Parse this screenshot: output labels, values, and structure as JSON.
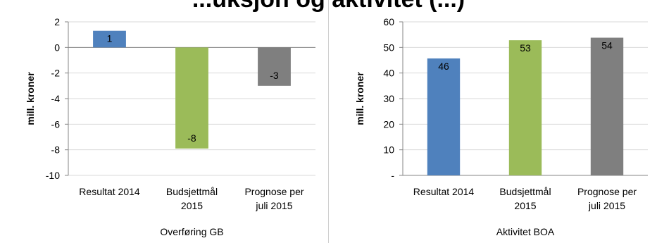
{
  "header": {
    "title": "...uksjon og aktivitet (...)"
  },
  "chart_data": [
    {
      "type": "bar",
      "ylabel": "mill. kroner",
      "xlabel": "Overføring GB",
      "ylim": [
        -10,
        2
      ],
      "yticks": [
        2,
        0,
        -2,
        -4,
        -6,
        -8,
        -10
      ],
      "ytick_labels": [
        "2",
        "0",
        "-2",
        "-4",
        "-6",
        "-8",
        "-10"
      ],
      "categories": [
        [
          "Resultat 2014"
        ],
        [
          "Budsjettmål",
          "2015"
        ],
        [
          "Prognose per",
          "juli 2015"
        ]
      ],
      "values": [
        1.3,
        -7.9,
        -3.0
      ],
      "data_labels": [
        "1",
        "-8",
        "-3"
      ],
      "colors": [
        "#4f81bd",
        "#9bbb59",
        "#7f7f7f"
      ],
      "grid": true,
      "legend": "none"
    },
    {
      "type": "bar",
      "ylabel": "mill. kroner",
      "xlabel": "Aktivitet BOA",
      "ylim": [
        0,
        60
      ],
      "yticks": [
        60,
        50,
        40,
        30,
        20,
        10,
        0
      ],
      "ytick_labels": [
        "60",
        "50",
        "40",
        "30",
        "20",
        "10",
        "-"
      ],
      "categories": [
        [
          "Resultat 2014"
        ],
        [
          "Budsjettmål",
          "2015"
        ],
        [
          "Prognose per",
          "juli 2015"
        ]
      ],
      "values": [
        45.7,
        52.8,
        53.8
      ],
      "data_labels": [
        "46",
        "53",
        "54"
      ],
      "colors": [
        "#4f81bd",
        "#9bbb59",
        "#7f7f7f"
      ],
      "grid": true,
      "legend": "none"
    }
  ]
}
